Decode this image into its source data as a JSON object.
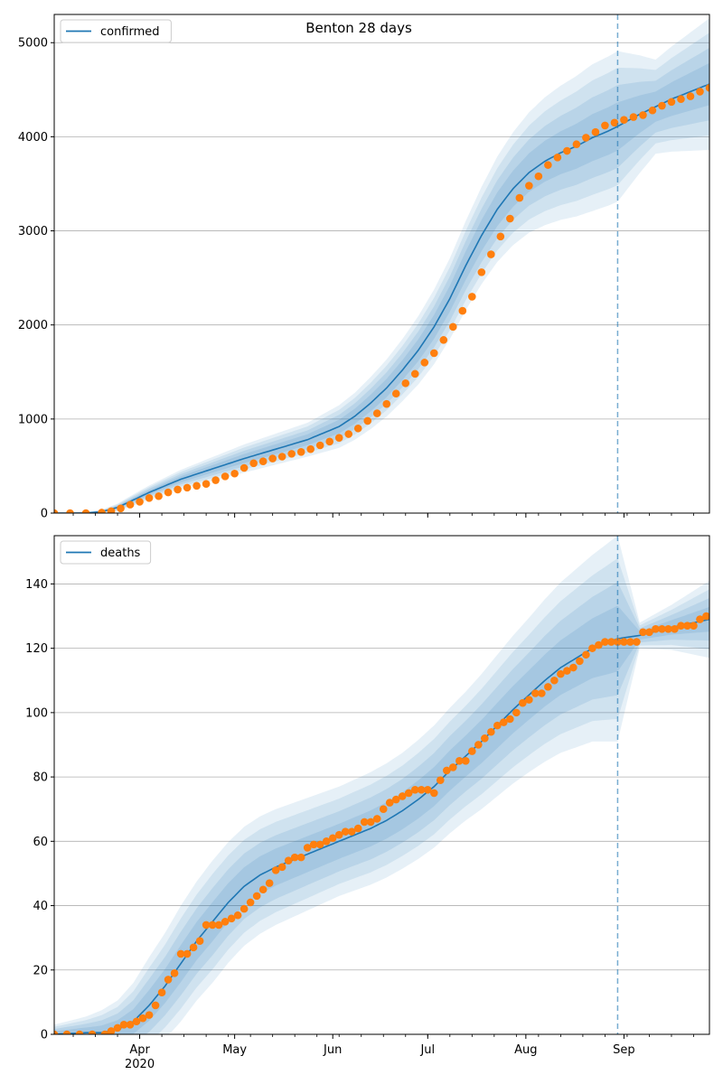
{
  "figure_title": "Benton 28 days",
  "colors": {
    "model": "#1f77b4",
    "observed": "#ff7f0e",
    "band": "#1f77b4",
    "grid": "#b0b0b0"
  },
  "x_axis": {
    "domain_days": [
      0,
      207
    ],
    "forecast_start_day": 178,
    "month_ticks": [
      {
        "day": 27,
        "label": "Apr"
      },
      {
        "day": 57,
        "label": "May"
      },
      {
        "day": 88,
        "label": "Jun"
      },
      {
        "day": 118,
        "label": "Jul"
      },
      {
        "day": 149,
        "label": "Aug"
      },
      {
        "day": 180,
        "label": "Sep"
      }
    ],
    "year_label": {
      "day": 27,
      "label": "2020"
    }
  },
  "chart_data": [
    {
      "type": "line",
      "legend": "confirmed",
      "legend_placement": "top-left",
      "ylim": [
        0,
        5300
      ],
      "yticks": [
        0,
        1000,
        2000,
        3000,
        4000,
        5000
      ],
      "grid": true,
      "model_curve": {
        "day": [
          0,
          10,
          15,
          20,
          25,
          30,
          40,
          50,
          60,
          70,
          80,
          90,
          95,
          100,
          105,
          110,
          115,
          120,
          125,
          130,
          135,
          140,
          145,
          150,
          155,
          160,
          165,
          170,
          175,
          178,
          185,
          195,
          207
        ],
        "value": [
          0,
          0,
          15,
          60,
          140,
          220,
          360,
          470,
          580,
          680,
          780,
          920,
          1030,
          1170,
          1330,
          1520,
          1730,
          1980,
          2280,
          2630,
          2950,
          3230,
          3450,
          3620,
          3740,
          3830,
          3900,
          3990,
          4060,
          4110,
          4240,
          4400,
          4560
        ]
      },
      "uncertainty_halfwidth_95": {
        "day": [
          0,
          15,
          25,
          40,
          60,
          80,
          95,
          110,
          125,
          140,
          155,
          170,
          178,
          190,
          207
        ],
        "value": [
          5,
          20,
          60,
          100,
          150,
          180,
          250,
          330,
          430,
          560,
          680,
          780,
          800,
          500,
          700
        ]
      },
      "observed": {
        "day": [
          0,
          5,
          10,
          15,
          18,
          21,
          24,
          27,
          30,
          33,
          36,
          39,
          42,
          45,
          48,
          51,
          54,
          57,
          60,
          63,
          66,
          69,
          72,
          75,
          78,
          81,
          84,
          87,
          90,
          93,
          96,
          99,
          102,
          105,
          108,
          111,
          114,
          117,
          120,
          123,
          126,
          129,
          132,
          135,
          138,
          141,
          144,
          147,
          150,
          153,
          156,
          159,
          162,
          165,
          168,
          171,
          174,
          177,
          180,
          183,
          186,
          189,
          192,
          195,
          198,
          201,
          204,
          207
        ],
        "value": [
          0,
          0,
          0,
          5,
          20,
          50,
          90,
          120,
          160,
          180,
          220,
          250,
          270,
          290,
          310,
          350,
          390,
          420,
          480,
          530,
          550,
          580,
          600,
          630,
          650,
          680,
          720,
          760,
          800,
          840,
          900,
          980,
          1060,
          1160,
          1270,
          1380,
          1480,
          1600,
          1700,
          1840,
          1980,
          2150,
          2300,
          2560,
          2750,
          2940,
          3130,
          3350,
          3480,
          3580,
          3700,
          3780,
          3850,
          3920,
          3990,
          4050,
          4120,
          4150,
          4180,
          4210,
          4230,
          4280,
          4330,
          4370,
          4400,
          4430,
          4480,
          4520
        ]
      }
    },
    {
      "type": "line",
      "legend": "deaths",
      "legend_placement": "top-left",
      "ylim": [
        0,
        155
      ],
      "yticks": [
        0,
        20,
        40,
        60,
        80,
        100,
        120,
        140
      ],
      "grid": true,
      "model_curve": {
        "day": [
          0,
          10,
          15,
          20,
          25,
          30,
          35,
          40,
          45,
          50,
          55,
          60,
          65,
          70,
          75,
          80,
          85,
          90,
          95,
          100,
          105,
          110,
          115,
          120,
          125,
          130,
          135,
          140,
          145,
          150,
          155,
          160,
          165,
          170,
          178,
          185,
          195,
          207
        ],
        "value": [
          0,
          0.5,
          0.5,
          1.5,
          4,
          9,
          15,
          22,
          29,
          35,
          41,
          46,
          49.5,
          52,
          54,
          56,
          58,
          60,
          62,
          64,
          66.5,
          69.5,
          73,
          77,
          82,
          86.5,
          91,
          96,
          101,
          105.5,
          110,
          114,
          117,
          120,
          123,
          124,
          126.5,
          129
        ]
      },
      "uncertainty_halfwidth_95": {
        "day": [
          0,
          10,
          20,
          30,
          40,
          50,
          70,
          90,
          110,
          130,
          150,
          170,
          178,
          185,
          195,
          207
        ],
        "value": [
          3,
          5,
          9,
          15,
          18,
          19,
          18,
          17,
          18,
          20,
          24,
          29,
          32,
          4,
          7,
          12
        ]
      },
      "observed": {
        "day": [
          0,
          4,
          8,
          12,
          16,
          18,
          20,
          22,
          24,
          26,
          28,
          30,
          32,
          34,
          36,
          38,
          40,
          42,
          44,
          46,
          48,
          50,
          52,
          54,
          56,
          58,
          60,
          62,
          64,
          66,
          68,
          70,
          72,
          74,
          76,
          78,
          80,
          82,
          84,
          86,
          88,
          90,
          92,
          94,
          96,
          98,
          100,
          102,
          104,
          106,
          108,
          110,
          112,
          114,
          116,
          118,
          120,
          122,
          124,
          126,
          128,
          130,
          132,
          134,
          136,
          138,
          140,
          142,
          144,
          146,
          148,
          150,
          152,
          154,
          156,
          158,
          160,
          162,
          164,
          166,
          168,
          170,
          172,
          174,
          176,
          178,
          180,
          182,
          184,
          186,
          188,
          190,
          192,
          194,
          196,
          198,
          200,
          202,
          204,
          206
        ],
        "value": [
          0,
          0,
          0,
          0,
          0,
          1,
          2,
          3,
          3,
          4,
          5,
          6,
          9,
          13,
          17,
          19,
          25,
          25,
          27,
          29,
          34,
          34,
          34,
          35,
          36,
          37,
          39,
          41,
          43,
          45,
          47,
          51,
          52,
          54,
          55,
          55,
          58,
          59,
          59,
          60,
          61,
          62,
          63,
          63,
          64,
          66,
          66,
          67,
          70,
          72,
          73,
          74,
          75,
          76,
          76,
          76,
          75,
          79,
          82,
          83,
          85,
          85,
          88,
          90,
          92,
          94,
          96,
          97,
          98,
          100,
          103,
          104,
          106,
          106,
          108,
          110,
          112,
          113,
          114,
          116,
          118,
          120,
          121,
          122,
          122,
          122,
          122,
          122,
          122,
          125,
          125,
          126,
          126,
          126,
          126,
          127,
          127,
          127,
          129,
          130
        ]
      }
    }
  ]
}
